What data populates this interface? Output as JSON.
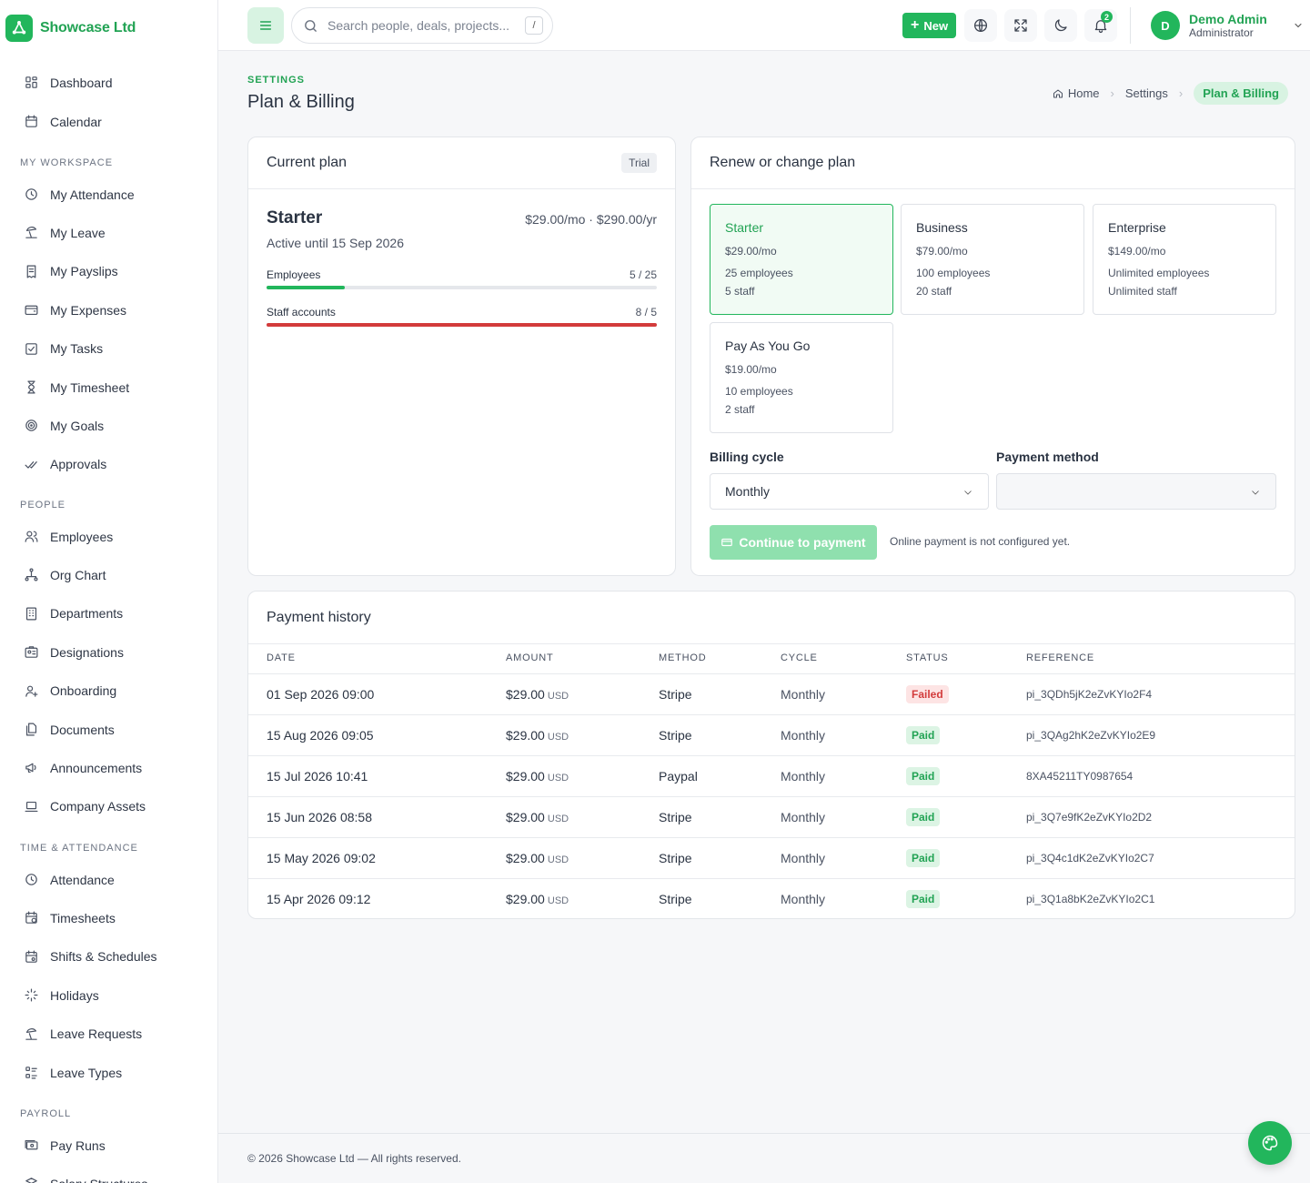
{
  "brand": {
    "name": "Showcase Ltd"
  },
  "sidebar": {
    "top": [
      {
        "label": "Dashboard",
        "icon": "dashboard-icon"
      },
      {
        "label": "Calendar",
        "icon": "calendar-icon"
      }
    ],
    "sections": [
      {
        "title": "MY WORKSPACE",
        "items": [
          {
            "label": "My Attendance",
            "icon": "clock-icon"
          },
          {
            "label": "My Leave",
            "icon": "beach-icon"
          },
          {
            "label": "My Payslips",
            "icon": "payslip-icon"
          },
          {
            "label": "My Expenses",
            "icon": "wallet-icon"
          },
          {
            "label": "My Tasks",
            "icon": "checkbox-icon"
          },
          {
            "label": "My Timesheet",
            "icon": "hourglass-icon"
          },
          {
            "label": "My Goals",
            "icon": "target-icon"
          },
          {
            "label": "Approvals",
            "icon": "double-check-icon"
          }
        ]
      },
      {
        "title": "PEOPLE",
        "items": [
          {
            "label": "Employees",
            "icon": "users-icon"
          },
          {
            "label": "Org Chart",
            "icon": "org-chart-icon"
          },
          {
            "label": "Departments",
            "icon": "building-icon"
          },
          {
            "label": "Designations",
            "icon": "id-badge-icon"
          },
          {
            "label": "Onboarding",
            "icon": "user-plus-icon"
          },
          {
            "label": "Documents",
            "icon": "documents-icon"
          },
          {
            "label": "Announcements",
            "icon": "megaphone-icon"
          },
          {
            "label": "Company Assets",
            "icon": "laptop-icon"
          }
        ]
      },
      {
        "title": "TIME & ATTENDANCE",
        "items": [
          {
            "label": "Attendance",
            "icon": "clock-icon"
          },
          {
            "label": "Timesheets",
            "icon": "calendar-clock-icon"
          },
          {
            "label": "Shifts & Schedules",
            "icon": "calendar-cog-icon"
          },
          {
            "label": "Holidays",
            "icon": "sparkles-icon"
          },
          {
            "label": "Leave Requests",
            "icon": "beach-icon"
          },
          {
            "label": "Leave Types",
            "icon": "list-icon"
          }
        ]
      },
      {
        "title": "PAYROLL",
        "items": [
          {
            "label": "Pay Runs",
            "icon": "cash-icon"
          },
          {
            "label": "Salary Structures",
            "icon": "structure-icon"
          }
        ]
      }
    ]
  },
  "topbar": {
    "search_placeholder": "Search people, deals, projects...",
    "search_shortcut": "/",
    "new_label": "New",
    "notifications_count": "2",
    "user": {
      "initial": "D",
      "name": "Demo Admin",
      "role": "Administrator"
    }
  },
  "page": {
    "eyebrow": "SETTINGS",
    "title": "Plan & Billing",
    "breadcrumb": [
      "Home",
      "Settings",
      "Plan & Billing"
    ]
  },
  "current_plan": {
    "title": "Current plan",
    "badge": "Trial",
    "name": "Starter",
    "price": "$29.00/mo · $290.00/yr",
    "active_until": "Active until 15 Sep 2026",
    "usage": [
      {
        "label": "Employees",
        "count": "5 / 25",
        "fraction": 0.2,
        "color": "#22b65c"
      },
      {
        "label": "Staff accounts",
        "count": "8 / 5",
        "fraction": 1.0,
        "color": "#d33b3b"
      }
    ]
  },
  "renew": {
    "title": "Renew or change plan",
    "options": [
      {
        "name": "Starter",
        "price": "$29.00/mo",
        "employees": "25 employees",
        "staff": "5 staff",
        "selected": true
      },
      {
        "name": "Business",
        "price": "$79.00/mo",
        "employees": "100 employees",
        "staff": "20 staff",
        "selected": false
      },
      {
        "name": "Enterprise",
        "price": "$149.00/mo",
        "employees": "Unlimited employees",
        "staff": "Unlimited staff",
        "selected": false
      },
      {
        "name": "Pay As You Go",
        "price": "$19.00/mo",
        "employees": "10 employees",
        "staff": "2 staff",
        "selected": false
      }
    ],
    "billing_cycle_label": "Billing cycle",
    "billing_cycle_value": "Monthly",
    "payment_method_label": "Payment method",
    "payment_method_value": "",
    "continue_label": "Continue to payment",
    "note": "Online payment is not configured yet."
  },
  "history": {
    "title": "Payment history",
    "columns": [
      "DATE",
      "AMOUNT",
      "METHOD",
      "CYCLE",
      "STATUS",
      "REFERENCE"
    ],
    "rows": [
      {
        "date": "01 Sep 2026 09:00",
        "amount": "$29.00",
        "currency": "USD",
        "method": "Stripe",
        "cycle": "Monthly",
        "status": "Failed",
        "reference": "pi_3QDh5jK2eZvKYIo2F4"
      },
      {
        "date": "15 Aug 2026 09:05",
        "amount": "$29.00",
        "currency": "USD",
        "method": "Stripe",
        "cycle": "Monthly",
        "status": "Paid",
        "reference": "pi_3QAg2hK2eZvKYIo2E9"
      },
      {
        "date": "15 Jul 2026 10:41",
        "amount": "$29.00",
        "currency": "USD",
        "method": "Paypal",
        "cycle": "Monthly",
        "status": "Paid",
        "reference": "8XA45211TY0987654"
      },
      {
        "date": "15 Jun 2026 08:58",
        "amount": "$29.00",
        "currency": "USD",
        "method": "Stripe",
        "cycle": "Monthly",
        "status": "Paid",
        "reference": "pi_3Q7e9fK2eZvKYIo2D2"
      },
      {
        "date": "15 May 2026 09:02",
        "amount": "$29.00",
        "currency": "USD",
        "method": "Stripe",
        "cycle": "Monthly",
        "status": "Paid",
        "reference": "pi_3Q4c1dK2eZvKYIo2C7"
      },
      {
        "date": "15 Apr 2026 09:12",
        "amount": "$29.00",
        "currency": "USD",
        "method": "Stripe",
        "cycle": "Monthly",
        "status": "Paid",
        "reference": "pi_3Q1a8bK2eZvKYIo2C1"
      }
    ]
  },
  "footer": {
    "text": "© 2026 Showcase Ltd — All rights reserved."
  },
  "colors": {
    "accent": "#22b65c",
    "danger": "#d33b3b"
  }
}
